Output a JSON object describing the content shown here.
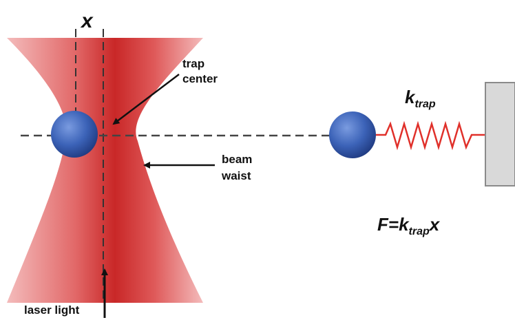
{
  "labels": {
    "displacement": "x",
    "trap_center_line1": "trap",
    "trap_center_line2": "center",
    "beam_waist_line1": "beam",
    "beam_waist_line2": "waist",
    "laser_light": "laser light",
    "spring_constant_k": "k",
    "spring_constant_sub": "trap",
    "formula_lhs": "F=k",
    "formula_sub": "trap",
    "formula_rhs": "x"
  },
  "colors": {
    "beam_light": "#f2b0b0",
    "beam_mid": "#e35b5b",
    "beam_core": "#c41a1a",
    "bead": "#3c63b8",
    "bead_highlight": "#7a9be0",
    "spring": "#e0302a",
    "wall_fill": "#d9d9d9",
    "wall_stroke": "#8a8a8a",
    "dash": "#444444",
    "arrow": "#111111"
  },
  "icons": {
    "bead_in_trap": "blue-sphere",
    "bead_on_spring": "blue-sphere",
    "spring": "zigzag-spring",
    "wall": "gray-wall"
  }
}
